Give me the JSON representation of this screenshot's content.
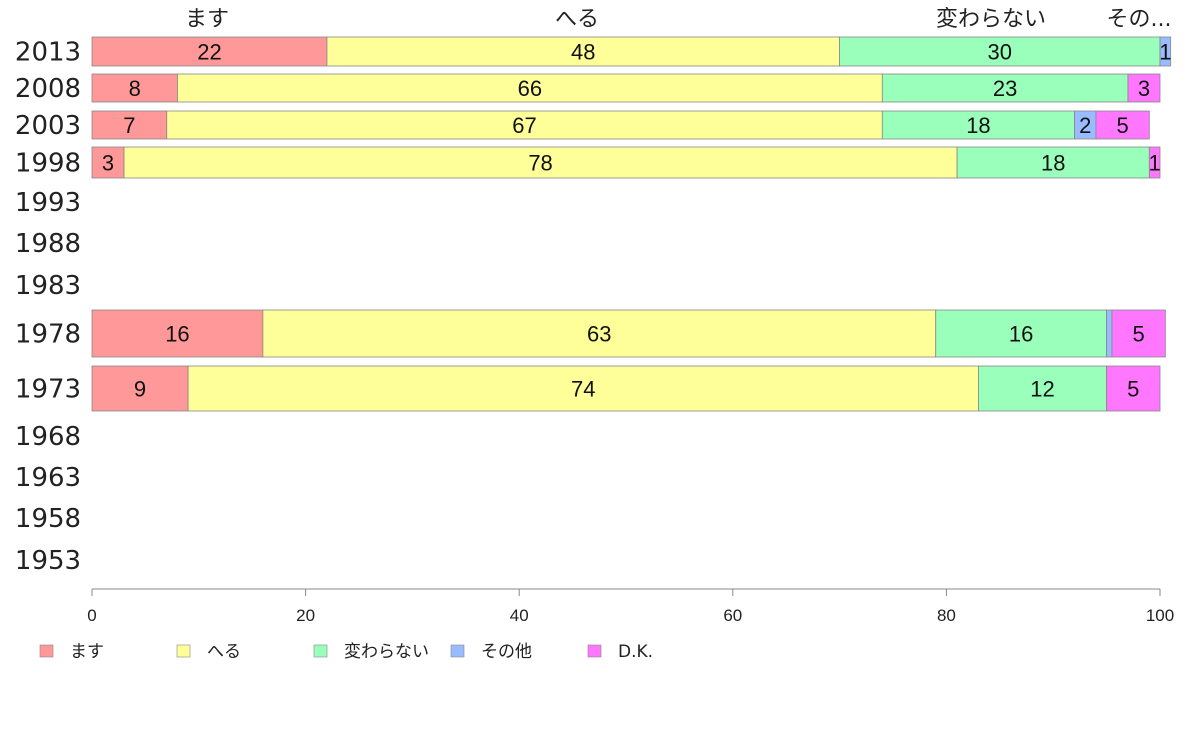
{
  "chart_data": {
    "type": "bar",
    "orientation": "horizontal",
    "stacked": true,
    "categories": [
      "2013",
      "2008",
      "2003",
      "1998",
      "1993",
      "1988",
      "1983",
      "1978",
      "1973",
      "1968",
      "1963",
      "1958",
      "1953"
    ],
    "series": [
      {
        "name": "ます",
        "color": "#ff9999",
        "values": [
          22,
          8,
          7,
          3,
          null,
          null,
          null,
          16,
          9,
          null,
          null,
          null,
          null
        ]
      },
      {
        "name": "へる",
        "color": "#ffff99",
        "values": [
          48,
          66,
          67,
          78,
          null,
          null,
          null,
          63,
          74,
          null,
          null,
          null,
          null
        ]
      },
      {
        "name": "変わらない",
        "color": "#99ffbb",
        "values": [
          30,
          23,
          18,
          18,
          null,
          null,
          null,
          16,
          12,
          null,
          null,
          null,
          null
        ]
      },
      {
        "name": "その他",
        "color": "#99bbff",
        "values": [
          1,
          0,
          2,
          0,
          null,
          null,
          null,
          0.5,
          0,
          null,
          null,
          null,
          null
        ]
      },
      {
        "name": "D.K.",
        "color": "#ff77ff",
        "values": [
          0,
          3,
          5,
          1,
          null,
          null,
          null,
          5,
          5,
          null,
          null,
          null,
          null
        ]
      }
    ],
    "column_labels": [
      "ます",
      "へる",
      "変わらない",
      "その..."
    ],
    "xlim": [
      0,
      100
    ],
    "xticks": [
      "0",
      "20",
      "40",
      "60",
      "80",
      "100"
    ],
    "legend_position": "bottom-left",
    "grid": false
  }
}
